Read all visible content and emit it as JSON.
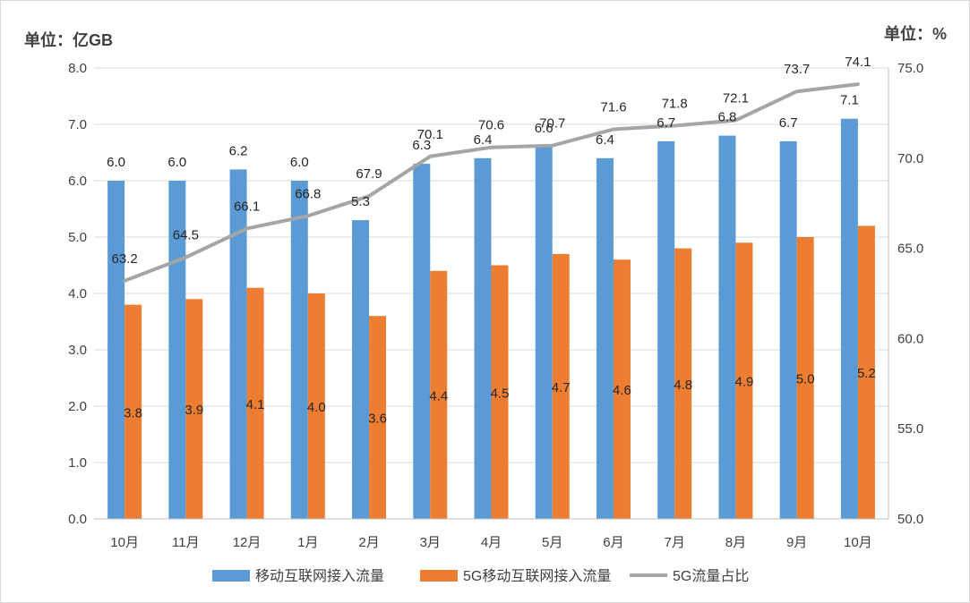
{
  "chart_data": {
    "type": "bar",
    "title": "",
    "left_unit": "单位：亿GB",
    "right_unit": "单位：%",
    "categories": [
      "10月",
      "11月",
      "12月",
      "1月",
      "2月",
      "3月",
      "4月",
      "5月",
      "6月",
      "7月",
      "8月",
      "9月",
      "10月"
    ],
    "ylim_left": [
      0,
      8
    ],
    "yticks_left": [
      "0.0",
      "1.0",
      "2.0",
      "3.0",
      "4.0",
      "5.0",
      "6.0",
      "7.0",
      "8.0"
    ],
    "ylim_right": [
      50,
      75
    ],
    "yticks_right": [
      "50.0",
      "55.0",
      "60.0",
      "65.0",
      "70.0",
      "75.0"
    ],
    "grid": true,
    "legend_position": "bottom",
    "series": [
      {
        "name": "移动互联网接入流量",
        "type": "bar",
        "axis": "left",
        "color": "#5b9bd5",
        "values": [
          6.0,
          6.0,
          6.2,
          6.0,
          5.3,
          6.3,
          6.4,
          6.6,
          6.4,
          6.7,
          6.8,
          6.7,
          7.1
        ],
        "labels": [
          "6.0",
          "6.0",
          "6.2",
          "6.0",
          "5.3",
          "6.3",
          "6.4",
          "6.6",
          "6.4",
          "6.7",
          "6.8",
          "6.7",
          "7.1"
        ]
      },
      {
        "name": "5G移动互联网接入流量",
        "type": "bar",
        "axis": "left",
        "color": "#ed7d31",
        "values": [
          3.8,
          3.9,
          4.1,
          4.0,
          3.6,
          4.4,
          4.5,
          4.7,
          4.6,
          4.8,
          4.9,
          5.0,
          5.2
        ],
        "labels": [
          "3.8",
          "3.9",
          "4.1",
          "4.0",
          "3.6",
          "4.4",
          "4.5",
          "4.7",
          "4.6",
          "4.8",
          "4.9",
          "5.0",
          "5.2"
        ]
      },
      {
        "name": "5G流量占比",
        "type": "line",
        "axis": "right",
        "color": "#a5a5a5",
        "values": [
          63.2,
          64.5,
          66.1,
          66.8,
          67.9,
          70.1,
          70.6,
          70.7,
          71.6,
          71.8,
          72.1,
          73.7,
          74.1
        ],
        "labels": [
          "63.2",
          "64.5",
          "66.1",
          "66.8",
          "67.9",
          "70.1",
          "70.6",
          "70.7",
          "71.6",
          "71.8",
          "72.1",
          "73.7",
          "74.1"
        ]
      }
    ]
  }
}
